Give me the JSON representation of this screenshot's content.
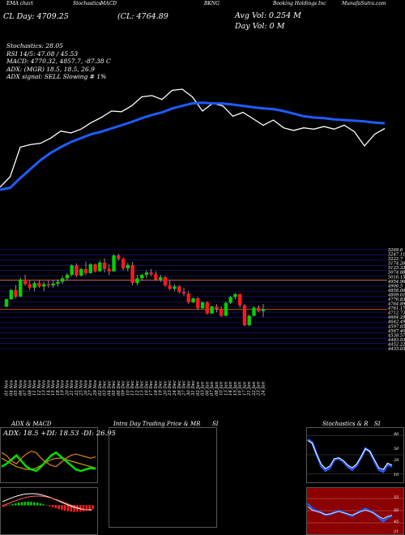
{
  "header": {
    "top_labels": [
      "EMA chart",
      "Stochastics",
      "MACD",
      "",
      "",
      "BKNG",
      "",
      "Booking Holdings Inc",
      "MunafaSutra.com"
    ],
    "cl_line": "(CL: 4764.89",
    "lcp_line": "CL Day: 4709.25",
    "avg_vol": "Avg Vol: 0.254  M",
    "day_vol": "Day Vol: 0  M",
    "stats": [
      "Stochastics: 28.05",
      "RSI 14/5: 47.08 / 45.53",
      "MACD: 4770.32, 4857.7, -87.38  C",
      "ADX:               (MGR) 18.5, 18.5, 26.9",
      "ADX  signal: SELL  Slowing # 1%"
    ]
  },
  "colors": {
    "background": "#000000",
    "up": "#00d200",
    "down": "#ff1a1a",
    "ema": "#1e5cff",
    "price": "#ffffff",
    "grid": "#1a1aa0",
    "level": "#d2691e"
  },
  "chart_data": [
    {
      "type": "line",
      "title": "EMA chart",
      "series": [
        {
          "values": [
            4450,
            4530,
            4760,
            4780,
            4790,
            4830,
            4885,
            4870,
            4900,
            4950,
            4990,
            5040,
            5035,
            5080,
            5150,
            5160,
            5130,
            5200,
            5210,
            5150,
            5040,
            5100,
            5080,
            5000,
            5030,
            4980,
            4930,
            4970,
            4910,
            4890,
            4910,
            4900,
            4920,
            4900,
            4930,
            4880,
            4770,
            4860,
            4905
          ]
        },
        {
          "values": [
            4430,
            4445,
            4520,
            4590,
            4660,
            4715,
            4760,
            4800,
            4830,
            4860,
            4880,
            4905,
            4930,
            4955,
            4985,
            5010,
            5030,
            5060,
            5080,
            5100,
            5105,
            5100,
            5098,
            5090,
            5080,
            5070,
            5060,
            5055,
            5040,
            5020,
            5000,
            4990,
            4985,
            4975,
            4970,
            4965,
            4960,
            4950,
            4945
          ]
        }
      ]
    },
    {
      "type": "bar",
      "title": "Daily Candles",
      "x": [
        "01 Nov",
        "04 Nov",
        "05 Nov",
        "06 Nov",
        "07 Nov",
        "08 Nov",
        "11 Nov",
        "12 Nov",
        "13 Nov",
        "14 Nov",
        "15 Nov",
        "18 Nov",
        "19 Nov",
        "20 Nov",
        "21 Nov",
        "22 Nov",
        "25 Nov",
        "26 Nov",
        "27 Nov",
        "29 Nov",
        "02 Dec",
        "03 Dec",
        "04 Dec",
        "05 Dec",
        "06 Dec",
        "09 Dec",
        "10 Dec",
        "11 Dec",
        "12 Dec",
        "13 Dec",
        "16 Dec",
        "17 Dec",
        "18 Dec",
        "19 Dec",
        "20 Dec",
        "23 Dec",
        "24 Dec",
        "26 Dec",
        "27 Dec",
        "30 Dec",
        "31 Dec",
        "02 Jan",
        "03 Jan",
        "06 Jan",
        "07 Jan",
        "08 Jan",
        "10 Jan",
        "13 Jan",
        "14 Jan",
        "15 Jan",
        "16 Jan",
        "17 Jan",
        "21 Jan",
        "22 Jan",
        "23 Jan",
        "24 Jan"
      ],
      "candles": [
        [
          4790,
          4858,
          4780,
          4852
        ],
        [
          4852,
          4940,
          4845,
          4930
        ],
        [
          4930,
          4972,
          4860,
          4875
        ],
        [
          4875,
          5035,
          4870,
          5020
        ],
        [
          5020,
          5060,
          4968,
          4980
        ],
        [
          4980,
          5010,
          4930,
          4950
        ],
        [
          4950,
          5005,
          4920,
          4990
        ],
        [
          4990,
          5010,
          4950,
          4960
        ],
        [
          4960,
          5000,
          4920,
          4980
        ],
        [
          4980,
          5010,
          4950,
          4970
        ],
        [
          4970,
          5010,
          4950,
          4985
        ],
        [
          4985,
          5020,
          4960,
          5000
        ],
        [
          5000,
          5050,
          4980,
          5030
        ],
        [
          5030,
          5075,
          5010,
          5060
        ],
        [
          5060,
          5150,
          5050,
          5140
        ],
        [
          5140,
          5158,
          5040,
          5055
        ],
        [
          5055,
          5120,
          5045,
          5110
        ],
        [
          5110,
          5175,
          5060,
          5075
        ],
        [
          5075,
          5160,
          5070,
          5150
        ],
        [
          5150,
          5155,
          5080,
          5090
        ],
        [
          5090,
          5180,
          5085,
          5165
        ],
        [
          5165,
          5200,
          5080,
          5110
        ],
        [
          5110,
          5150,
          5060,
          5090
        ],
        [
          5090,
          5235,
          5085,
          5225
        ],
        [
          5225,
          5240,
          5180,
          5195
        ],
        [
          5195,
          5210,
          5100,
          5115
        ],
        [
          5115,
          5160,
          5090,
          5145
        ],
        [
          5145,
          5170,
          4970,
          4990
        ],
        [
          4990,
          5060,
          4970,
          5030
        ],
        [
          5030,
          5070,
          5010,
          5060
        ],
        [
          5060,
          5100,
          5030,
          5080
        ],
        [
          5080,
          5110,
          5050,
          5065
        ],
        [
          5065,
          5090,
          5010,
          5020
        ],
        [
          5020,
          5060,
          5000,
          5040
        ],
        [
          5040,
          5050,
          4960,
          4970
        ],
        [
          4970,
          5010,
          4930,
          4940
        ],
        [
          4940,
          4980,
          4920,
          4960
        ],
        [
          4960,
          4970,
          4900,
          4915
        ],
        [
          4915,
          4950,
          4880,
          4900
        ],
        [
          4900,
          4920,
          4810,
          4825
        ],
        [
          4825,
          4865,
          4820,
          4860
        ],
        [
          4860,
          4870,
          4760,
          4775
        ],
        [
          4775,
          4830,
          4770,
          4825
        ],
        [
          4825,
          4835,
          4720,
          4730
        ],
        [
          4730,
          4795,
          4725,
          4790
        ],
        [
          4790,
          4810,
          4740,
          4770
        ],
        [
          4770,
          4790,
          4700,
          4710
        ],
        [
          4710,
          4830,
          4705,
          4820
        ],
        [
          4820,
          4880,
          4810,
          4870
        ],
        [
          4870,
          4905,
          4850,
          4895
        ],
        [
          4895,
          4900,
          4780,
          4800
        ],
        [
          4800,
          4810,
          4620,
          4630
        ],
        [
          4630,
          4720,
          4620,
          4710
        ],
        [
          4710,
          4790,
          4705,
          4780
        ],
        [
          4780,
          4800,
          4740,
          4750
        ],
        [
          4750,
          4810,
          4700,
          4765
        ]
      ],
      "price_axis": [
        "5269.6",
        "5247.11",
        "5222.7",
        "5174.26",
        "5125.33",
        "5074.88",
        "5016.15",
        "4954.96",
        "4906.5",
        "4858.06",
        "4809.61",
        "4776.83",
        "4764.89",
        "4761.17",
        "4712.73",
        "4664.29",
        "4642.49",
        "4597.85",
        "4567.40",
        "4538.57",
        "4483.93",
        "4452.22",
        "4433.03"
      ],
      "ylim": [
        4430,
        5275
      ]
    },
    {
      "type": "line",
      "title": "ADX & MACD",
      "series": [
        {
          "name": "ADX",
          "values": [
            26,
            24,
            22,
            20,
            19,
            18,
            18,
            19,
            21,
            23,
            25,
            26,
            26,
            25,
            24,
            23,
            22,
            21,
            20,
            19
          ]
        },
        {
          "name": "+DI",
          "values": [
            20,
            22,
            25,
            28,
            24,
            20,
            18,
            17,
            20,
            24,
            28,
            30,
            27,
            24,
            21,
            18,
            17,
            18,
            19,
            18.5
          ]
        },
        {
          "name": "-DI",
          "values": [
            30,
            28,
            24,
            22,
            26,
            29,
            31,
            30,
            26,
            23,
            21,
            20,
            23,
            26,
            28,
            29,
            28,
            27,
            26,
            26.95
          ]
        }
      ]
    },
    {
      "type": "line",
      "title": "Stochastics & RSI",
      "series": [
        {
          "name": "Stochastics",
          "values": [
            82,
            76,
            52,
            30,
            20,
            26,
            42,
            44,
            38,
            28,
            22,
            30,
            46,
            64,
            58,
            40,
            22,
            18,
            32,
            28
          ]
        },
        {
          "name": "RSI",
          "values": [
            54,
            51,
            50,
            49,
            47.5,
            48,
            49,
            50,
            49,
            48,
            47,
            48.5,
            50,
            51,
            50,
            48.5,
            46,
            44,
            46,
            47
          ]
        }
      ]
    }
  ],
  "date_ticks": [
    "01 Nov",
    "04 Nov",
    "05 Nov",
    "06 Nov",
    "07 Nov",
    "08 Nov",
    "11 Nov",
    "12 Nov",
    "13 Nov",
    "14 Nov",
    "15 Nov",
    "18 Nov",
    "19 Nov",
    "20 Nov",
    "21 Nov",
    "22 Nov",
    "25 Nov",
    "26 Nov",
    "27 Nov",
    "29 Nov",
    "02 Dec",
    "03 Dec",
    "04 Dec",
    "05 Dec",
    "06 Dec",
    "09 Dec",
    "10 Dec",
    "11 Dec",
    "12 Dec",
    "13 Dec",
    "16 Dec",
    "17 Dec",
    "18 Dec",
    "19 Dec",
    "20 Dec",
    "23 Dec",
    "24 Dec",
    "26 Dec",
    "27 Dec",
    "30 Dec",
    "31 Dec",
    "02 Jan",
    "03 Jan",
    "06 Jan",
    "07 Jan",
    "08 Jan",
    "10 Jan",
    "13 Jan",
    "14 Jan",
    "15 Jan",
    "16 Jan",
    "17 Jan",
    "21 Jan",
    "22 Jan",
    "23 Jan",
    "24 Jan"
  ],
  "panels": {
    "adx_title": "ADX  & MACD",
    "adx_readout": "ADX: 18.5  +DI: 18.53  -DI: 26.95",
    "intra_title": "Intra  Day Trading Price  & MR",
    "intra_si": "SI",
    "stoch_title": "Stochastics & R",
    "stoch_si": "SI",
    "stoch_ticks": [
      "90",
      "50",
      "28",
      "10"
    ],
    "rsi_ticks": [
      "55",
      "50",
      "45",
      "21"
    ]
  }
}
